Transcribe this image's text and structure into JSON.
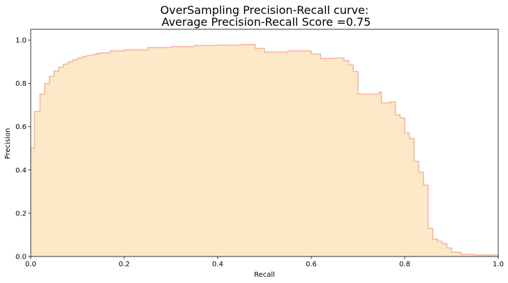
{
  "chart_data": {
    "type": "area",
    "title_line1": "OverSampling Precision-Recall curve:",
    "title_line2": " Average Precision-Recall Score =0.75",
    "xlabel": "Recall",
    "ylabel": "Precision",
    "xlim": [
      0,
      1
    ],
    "ylim": [
      0,
      1.05
    ],
    "xticks": [
      0.0,
      0.2,
      0.4,
      0.6,
      0.8,
      1.0
    ],
    "xtick_labels": [
      "0.0",
      "0.2",
      "0.4",
      "0.6",
      "0.8",
      "1.0"
    ],
    "yticks": [
      0.0,
      0.2,
      0.4,
      0.6,
      0.8,
      1.0
    ],
    "ytick_labels": [
      "0.0",
      "0.2",
      "0.4",
      "0.6",
      "0.8",
      "1.0"
    ],
    "grid": false,
    "fill_color": "#fde8c8",
    "line_color": "#f5b49b",
    "series": [
      {
        "name": "precision-recall step",
        "recall": [
          0.0,
          0.008,
          0.02,
          0.03,
          0.04,
          0.05,
          0.06,
          0.07,
          0.08,
          0.09,
          0.1,
          0.11,
          0.12,
          0.13,
          0.14,
          0.15,
          0.17,
          0.2,
          0.25,
          0.3,
          0.35,
          0.4,
          0.45,
          0.48,
          0.5,
          0.55,
          0.6,
          0.62,
          0.65,
          0.67,
          0.68,
          0.69,
          0.7,
          0.745,
          0.75,
          0.77,
          0.78,
          0.79,
          0.8,
          0.81,
          0.82,
          0.83,
          0.84,
          0.85,
          0.86,
          0.87,
          0.88,
          0.89,
          0.9,
          0.92,
          0.95,
          1.0
        ],
        "precision": [
          0.5,
          0.67,
          0.75,
          0.8,
          0.833,
          0.857,
          0.875,
          0.889,
          0.9,
          0.909,
          0.917,
          0.923,
          0.929,
          0.933,
          0.938,
          0.941,
          0.95,
          0.955,
          0.965,
          0.97,
          0.975,
          0.977,
          0.98,
          0.962,
          0.945,
          0.95,
          0.936,
          0.915,
          0.917,
          0.905,
          0.885,
          0.855,
          0.75,
          0.76,
          0.71,
          0.714,
          0.654,
          0.64,
          0.57,
          0.545,
          0.44,
          0.39,
          0.33,
          0.13,
          0.08,
          0.07,
          0.06,
          0.04,
          0.02,
          0.01,
          0.007,
          0.005
        ]
      }
    ]
  }
}
